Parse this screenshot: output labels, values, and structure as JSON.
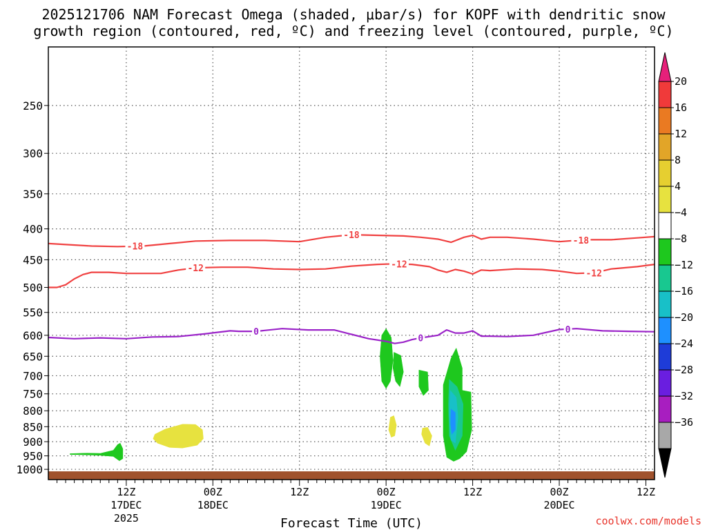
{
  "chart_data": {
    "type": "time-height contour",
    "title_line1": "2025121706 NAM Forecast Omega (shaded, μbar/s) for KOPF with dendritic snow",
    "title_line2": "growth region (contoured, red, ºC) and freezing level (contoured, purple, ºC)",
    "xlabel": "Forecast Time (UTC)",
    "credit": "coolwx.com/models",
    "x_range_hours": [
      -3,
      67
    ],
    "y_range_mb": [
      1040,
      200
    ],
    "y_ticks": [
      250,
      300,
      350,
      400,
      450,
      500,
      550,
      600,
      650,
      700,
      750,
      800,
      850,
      900,
      950,
      1000
    ],
    "x_ticks": [
      {
        "hour": 6,
        "line1": "12Z",
        "line2": "17DEC",
        "line3": "2025"
      },
      {
        "hour": 16,
        "line1": "00Z",
        "line2": "18DEC",
        "line3": ""
      },
      {
        "hour": 26,
        "line1": "12Z",
        "line2": "",
        "line3": ""
      },
      {
        "hour": 36,
        "line1": "00Z",
        "line2": "19DEC",
        "line3": ""
      },
      {
        "hour": 46,
        "line1": "12Z",
        "line2": "",
        "line3": ""
      },
      {
        "hour": 56,
        "line1": "00Z",
        "line2": "20DEC",
        "line3": ""
      },
      {
        "hour": 66,
        "line1": "12Z",
        "line2": "",
        "line3": ""
      }
    ],
    "colorbar": {
      "labels": [
        "20",
        "16",
        "12",
        "8",
        "4",
        "−4",
        "−8",
        "−12",
        "−16",
        "−20",
        "−24",
        "−28",
        "−32",
        "−36"
      ],
      "colors": [
        "#f03a3a",
        "#ea7a22",
        "#e2a528",
        "#e6cf30",
        "#e7e23f",
        "#ffffff",
        "#1ec81e",
        "#18c890",
        "#18c0c8",
        "#1e90ff",
        "#1e3cd8",
        "#6a1ee0",
        "#a81ec0",
        "#a8a8a8"
      ],
      "top_triangle": "#e6207a",
      "bottom_triangle": "#000000"
    },
    "series": [
      {
        "name": "-18 C isotherm",
        "color": "#f04040",
        "label": "-18",
        "label_hours": [
          7,
          32,
          58.5
        ],
        "x": [
          -3,
          2,
          5,
          8,
          11,
          14,
          18,
          22,
          26,
          29,
          32,
          35,
          38,
          40,
          42,
          43.5,
          45,
          46,
          47,
          48,
          50,
          53,
          56,
          59,
          62,
          65,
          67
        ],
        "y": [
          423,
          427,
          428,
          427,
          423,
          419,
          418,
          418,
          420,
          413,
          409,
          410,
          411,
          413,
          416,
          421,
          413,
          410,
          416,
          413,
          413,
          416,
          420,
          417,
          417,
          414,
          412
        ]
      },
      {
        "name": "-12 C isotherm",
        "color": "#f04040",
        "label": "-12",
        "label_hours": [
          14,
          37.5,
          60
        ],
        "x": [
          -3,
          -2,
          -1,
          0,
          1,
          2,
          4,
          6,
          8,
          10,
          12,
          14,
          17,
          20,
          23,
          26,
          29,
          32,
          35,
          37,
          39,
          41,
          42,
          43,
          44,
          45,
          46,
          47,
          48,
          51,
          54,
          56,
          58,
          60,
          62,
          65,
          67
        ],
        "y": [
          500,
          500,
          495,
          484,
          476,
          472,
          472,
          474,
          474,
          474,
          468,
          464,
          463,
          463,
          466,
          467,
          466,
          461,
          458,
          457,
          458,
          462,
          468,
          472,
          467,
          470,
          475,
          468,
          469,
          466,
          467,
          470,
          474,
          473,
          466,
          462,
          458
        ]
      },
      {
        "name": "0 C freezing level",
        "color": "#9a22c8",
        "label": "0",
        "label_hours": [
          21,
          40,
          57
        ],
        "x": [
          -3,
          0,
          3,
          6,
          9,
          12,
          15,
          18,
          19,
          21,
          24,
          27,
          30,
          34,
          36,
          37,
          38,
          39,
          40,
          42,
          43,
          44,
          45,
          46,
          47,
          48,
          50,
          53,
          56,
          58,
          61,
          64,
          67
        ],
        "y": [
          605,
          608,
          606,
          608,
          604,
          603,
          597,
          590,
          591,
          591,
          585,
          588,
          588,
          608,
          614,
          619,
          616,
          610,
          606,
          600,
          588,
          595,
          595,
          590,
          602,
          602,
          603,
          600,
          587,
          585,
          590,
          591,
          592
        ]
      }
    ],
    "omega_regions": [
      {
        "category": "4 to 8",
        "color": "#e7e23f",
        "points": [
          [
            9.3,
            875
          ],
          [
            10.5,
            858
          ],
          [
            12.5,
            842
          ],
          [
            14.0,
            843
          ],
          [
            14.8,
            860
          ],
          [
            14.9,
            890
          ],
          [
            14.2,
            912
          ],
          [
            12.5,
            922
          ],
          [
            11.0,
            920
          ],
          [
            9.6,
            905
          ],
          [
            9.1,
            890
          ]
        ]
      },
      {
        "category": "4 to 8",
        "color": "#e7e23f",
        "points": [
          [
            36.5,
            820
          ],
          [
            36.9,
            815
          ],
          [
            37.2,
            845
          ],
          [
            37.0,
            880
          ],
          [
            36.6,
            885
          ],
          [
            36.3,
            860
          ]
        ]
      },
      {
        "category": "4 to 8",
        "color": "#e7e23f",
        "points": [
          [
            40.2,
            855
          ],
          [
            40.8,
            852
          ],
          [
            41.3,
            880
          ],
          [
            41.0,
            915
          ],
          [
            40.5,
            905
          ],
          [
            40.1,
            875
          ]
        ]
      },
      {
        "category": "-4 to -8",
        "color": "#1ec81e",
        "points": [
          [
            -0.5,
            942
          ],
          [
            1.5,
            940
          ],
          [
            3.0,
            941
          ],
          [
            4.5,
            930
          ],
          [
            5.0,
            910
          ],
          [
            5.3,
            905
          ],
          [
            5.6,
            925
          ],
          [
            5.6,
            960
          ],
          [
            5.2,
            968
          ],
          [
            4.5,
            952
          ],
          [
            3.0,
            948
          ],
          [
            1.0,
            946
          ],
          [
            -0.5,
            945
          ]
        ]
      },
      {
        "category": "-4 to -8",
        "color": "#1ec81e",
        "points": [
          [
            35.5,
            600
          ],
          [
            36.0,
            585
          ],
          [
            36.6,
            605
          ],
          [
            36.8,
            660
          ],
          [
            36.5,
            715
          ],
          [
            36.0,
            735
          ],
          [
            35.5,
            715
          ],
          [
            35.3,
            650
          ]
        ]
      },
      {
        "category": "-4 to -8",
        "color": "#1ec81e",
        "points": [
          [
            36.9,
            640
          ],
          [
            37.7,
            648
          ],
          [
            38.0,
            690
          ],
          [
            37.6,
            730
          ],
          [
            37.1,
            715
          ],
          [
            36.8,
            680
          ]
        ]
      },
      {
        "category": "-4 to -8",
        "color": "#1ec81e",
        "points": [
          [
            39.8,
            685
          ],
          [
            40.8,
            690
          ],
          [
            40.9,
            740
          ],
          [
            40.3,
            755
          ],
          [
            39.8,
            730
          ]
        ]
      },
      {
        "category": "-4 to -8",
        "color": "#1ec81e",
        "points": [
          [
            42.6,
            725
          ],
          [
            43.5,
            655
          ],
          [
            44.1,
            630
          ],
          [
            44.8,
            680
          ],
          [
            44.8,
            740
          ],
          [
            45.8,
            745
          ],
          [
            45.9,
            860
          ],
          [
            45.3,
            935
          ],
          [
            44.5,
            960
          ],
          [
            43.8,
            970
          ],
          [
            43.0,
            955
          ],
          [
            42.6,
            880
          ]
        ]
      },
      {
        "category": "-8 to -12",
        "color": "#18c890",
        "points": [
          [
            43.3,
            710
          ],
          [
            44.2,
            730
          ],
          [
            44.9,
            780
          ],
          [
            44.8,
            880
          ],
          [
            44.0,
            930
          ],
          [
            43.3,
            880
          ],
          [
            43.2,
            780
          ]
        ]
      },
      {
        "category": "-12 to -16",
        "color": "#18c0c8",
        "points": [
          [
            43.4,
            740
          ],
          [
            44.1,
            760
          ],
          [
            44.3,
            820
          ],
          [
            44.0,
            905
          ],
          [
            43.5,
            895
          ],
          [
            43.3,
            810
          ]
        ]
      },
      {
        "category": "-16 to -20",
        "color": "#1e90ff",
        "points": [
          [
            43.5,
            795
          ],
          [
            44.0,
            805
          ],
          [
            44.0,
            860
          ],
          [
            43.6,
            875
          ],
          [
            43.45,
            840
          ]
        ]
      }
    ]
  }
}
